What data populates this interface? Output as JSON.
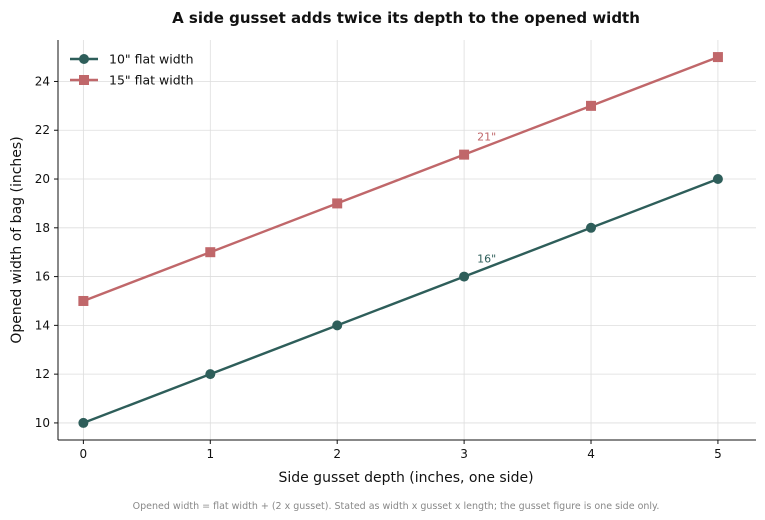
{
  "chart_data": {
    "type": "line",
    "title": "A side gusset adds twice its depth to the opened width",
    "xlabel": "Side gusset depth (inches, one side)",
    "ylabel": "Opened width of bag (inches)",
    "x": [
      0,
      1,
      2,
      3,
      4,
      5
    ],
    "xticks": [
      "0",
      "1",
      "2",
      "3",
      "4",
      "5"
    ],
    "yticks": [
      "10",
      "12",
      "14",
      "16",
      "18",
      "20",
      "22",
      "24"
    ],
    "xlim": [
      -0.2,
      5.3
    ],
    "ylim": [
      9.3,
      25.7
    ],
    "grid": true,
    "legend_position": "top-left",
    "series": [
      {
        "name": "10\" flat width",
        "values": [
          10,
          12,
          14,
          16,
          18,
          20
        ],
        "color": "#2e5e5a",
        "marker": "circle"
      },
      {
        "name": "15\" flat width",
        "values": [
          15,
          17,
          19,
          21,
          23,
          25
        ],
        "color": "#c0676a",
        "marker": "square"
      }
    ],
    "annotations": [
      {
        "text": "16\"",
        "x": 3,
        "y": 16,
        "series": 0
      },
      {
        "text": "21\"",
        "x": 3,
        "y": 21,
        "series": 1
      }
    ],
    "footnote": "Opened width = flat width + (2 x gusset). Stated as width x gusset x length; the gusset figure is one side only."
  }
}
